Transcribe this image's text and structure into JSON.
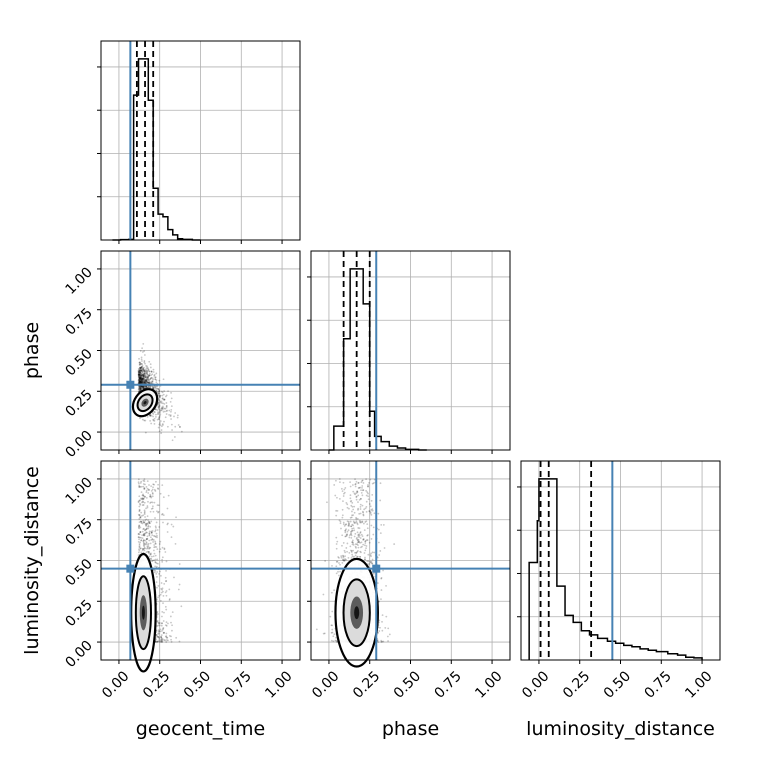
{
  "chart_data": {
    "type": "corner",
    "params": [
      "geocent_time",
      "phase",
      "luminosity_distance"
    ],
    "axis_labels": [
      "geocent_time",
      "phase",
      "luminosity_distance"
    ],
    "range": [
      0,
      1
    ],
    "ticks": [
      "0.00",
      "0.25",
      "0.50",
      "0.75",
      "1.00"
    ],
    "tick_values": [
      0,
      0.25,
      0.5,
      0.75,
      1.0
    ],
    "grid": true,
    "colors": {
      "truth": "#4682b4",
      "hist": "#000000",
      "scatter": "#000000"
    },
    "truths": {
      "geocent_time": 0.07,
      "phase": 0.29,
      "luminosity_distance": 0.45
    },
    "quantiles": {
      "geocent_time": [
        0.11,
        0.16,
        0.21
      ],
      "phase": [
        0.09,
        0.17,
        0.25
      ],
      "luminosity_distance": [
        0.01,
        0.06,
        0.32
      ]
    },
    "histograms": {
      "geocent_time": {
        "bin_edges": [
          -0.04,
          0.01,
          0.06,
          0.09,
          0.12,
          0.15,
          0.18,
          0.21,
          0.24,
          0.27,
          0.3,
          0.33,
          0.36,
          0.39,
          0.45,
          0.5
        ],
        "counts": [
          0,
          3,
          5,
          1120,
          1400,
          1400,
          1080,
          400,
          200,
          180,
          80,
          40,
          10,
          5,
          0
        ]
      },
      "phase": {
        "bin_edges": [
          0.0,
          0.03,
          0.06,
          0.09,
          0.13,
          0.17,
          0.21,
          0.25,
          0.28,
          0.32,
          0.37,
          0.42,
          0.47,
          0.55,
          0.6
        ],
        "counts": [
          0,
          185,
          185,
          860,
          1400,
          1400,
          1130,
          300,
          105,
          65,
          30,
          15,
          5,
          0
        ]
      },
      "luminosity_distance": {
        "bin_edges": [
          -0.06,
          -0.01,
          0.0,
          0.05,
          0.11,
          0.16,
          0.21,
          0.26,
          0.31,
          0.36,
          0.42,
          0.47,
          0.52,
          0.57,
          0.62,
          0.67,
          0.72,
          0.79,
          0.85,
          0.9,
          0.95,
          1.0
        ],
        "counts": [
          700,
          1000,
          1300,
          1300,
          530,
          320,
          270,
          210,
          180,
          155,
          135,
          120,
          105,
          95,
          80,
          70,
          60,
          45,
          35,
          20,
          15
        ]
      }
    }
  }
}
